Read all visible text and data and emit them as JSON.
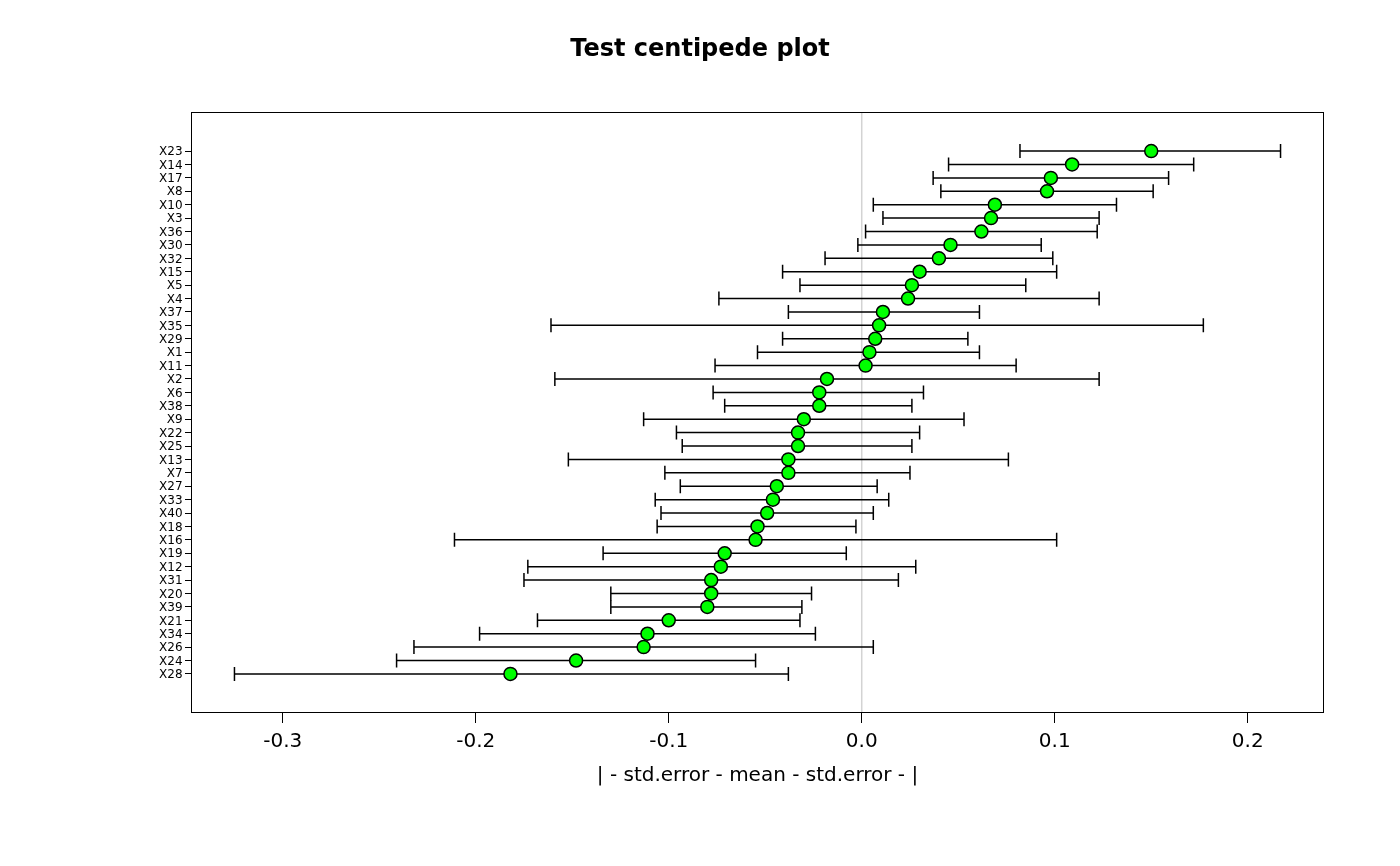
{
  "chart_data": {
    "type": "scatter",
    "title": "Test centipede plot",
    "xlabel": "| - std.error - mean - std.error - |",
    "orientation": "horizontal",
    "marker": "circle",
    "grid": false,
    "color": "#00ff00",
    "categories": [
      "X23",
      "X14",
      "X17",
      "X8",
      "X10",
      "X3",
      "X36",
      "X30",
      "X32",
      "X15",
      "X5",
      "X4",
      "X37",
      "X35",
      "X29",
      "X1",
      "X11",
      "X2",
      "X6",
      "X38",
      "X9",
      "X22",
      "X25",
      "X13",
      "X7",
      "X27",
      "X33",
      "X40",
      "X18",
      "X16",
      "X19",
      "X12",
      "X31",
      "X20",
      "X39",
      "X21",
      "X34",
      "X26",
      "X24",
      "X28"
    ],
    "values": [
      0.15,
      0.109,
      0.098,
      0.096,
      0.069,
      0.067,
      0.062,
      0.046,
      0.04,
      0.03,
      0.026,
      0.024,
      0.011,
      0.009,
      0.007,
      0.004,
      0.002,
      -0.018,
      -0.022,
      -0.022,
      -0.03,
      -0.033,
      -0.033,
      -0.038,
      -0.038,
      -0.044,
      -0.046,
      -0.049,
      -0.054,
      -0.055,
      -0.071,
      -0.073,
      -0.078,
      -0.078,
      -0.08,
      -0.1,
      -0.111,
      -0.113,
      -0.148,
      -0.182
    ],
    "errors": [
      [
        0.082,
        0.217
      ],
      [
        0.045,
        0.172
      ],
      [
        0.037,
        0.159
      ],
      [
        0.041,
        0.151
      ],
      [
        0.006,
        0.132
      ],
      [
        0.011,
        0.123
      ],
      [
        0.002,
        0.122
      ],
      [
        -0.002,
        0.093
      ],
      [
        -0.019,
        0.099
      ],
      [
        -0.041,
        0.101
      ],
      [
        -0.032,
        0.085
      ],
      [
        -0.074,
        0.123
      ],
      [
        -0.038,
        0.061
      ],
      [
        -0.161,
        0.177
      ],
      [
        -0.041,
        0.055
      ],
      [
        -0.054,
        0.061
      ],
      [
        -0.076,
        0.08
      ],
      [
        -0.159,
        0.123
      ],
      [
        -0.077,
        0.032
      ],
      [
        -0.071,
        0.026
      ],
      [
        -0.113,
        0.053
      ],
      [
        -0.096,
        0.03
      ],
      [
        -0.093,
        0.026
      ],
      [
        -0.152,
        0.076
      ],
      [
        -0.102,
        0.025
      ],
      [
        -0.094,
        0.008
      ],
      [
        -0.107,
        0.014
      ],
      [
        -0.104,
        0.006
      ],
      [
        -0.106,
        -0.003
      ],
      [
        -0.211,
        0.101
      ],
      [
        -0.134,
        -0.008
      ],
      [
        -0.173,
        0.028
      ],
      [
        -0.175,
        0.019
      ],
      [
        -0.13,
        -0.026
      ],
      [
        -0.13,
        -0.031
      ],
      [
        -0.168,
        -0.032
      ],
      [
        -0.198,
        -0.024
      ],
      [
        -0.232,
        0.006
      ],
      [
        -0.241,
        -0.055
      ],
      [
        -0.325,
        -0.038
      ]
    ],
    "xlim": [
      -0.347,
      0.239
    ],
    "xticks": [
      {
        "value": -0.3,
        "label": "-0.3"
      },
      {
        "value": -0.2,
        "label": "-0.2"
      },
      {
        "value": -0.1,
        "label": "-0.1"
      },
      {
        "value": 0,
        "label": "0.0"
      },
      {
        "value": 0.1,
        "label": "0.1"
      },
      {
        "value": 0.2,
        "label": "0.2"
      }
    ],
    "ref_lines": [
      {
        "axis": "x",
        "value": 0,
        "color": "#d3d3d3"
      }
    ]
  }
}
